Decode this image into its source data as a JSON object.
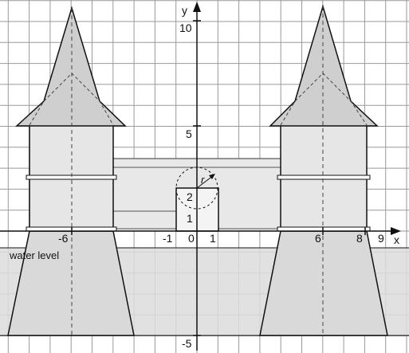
{
  "diagram": {
    "axes": {
      "x_label": "x",
      "y_label": "y",
      "x_ticks": [
        "-6",
        "-1",
        "0",
        "1",
        "6",
        "8",
        "9"
      ],
      "y_ticks": [
        "10",
        "5",
        "2",
        "1",
        "-5"
      ]
    },
    "annotations": {
      "water_level": "water level",
      "radius": "r"
    },
    "grid": true,
    "colors": {
      "grid": "#9a9a9a",
      "wall_fill": "#e6e6e6",
      "tower_fill": "#e4e4e4",
      "roof_fill": "#cfcfcf",
      "water_fill": "#d9d9d9",
      "line": "#111111"
    }
  }
}
